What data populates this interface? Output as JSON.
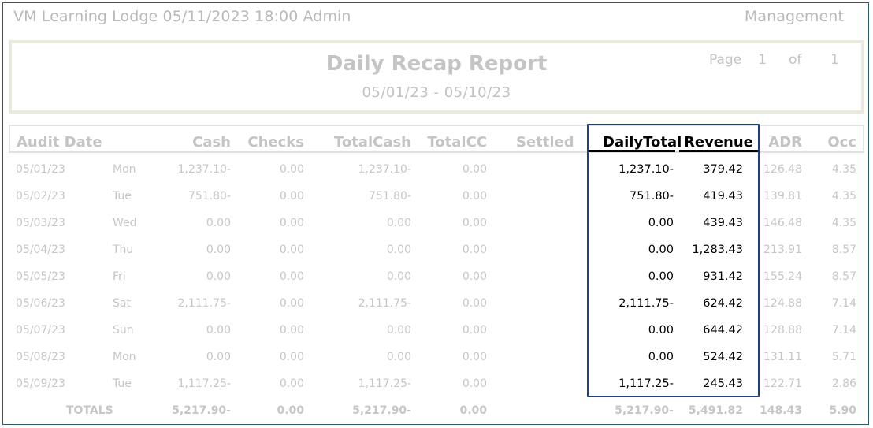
{
  "header": {
    "left_text": "VM Learning Lodge 05/11/2023 18:00  Admin",
    "right_text": "Management"
  },
  "report": {
    "title": "Daily Recap Report",
    "date_range": "05/01/23 - 05/10/23",
    "page_label": "Page",
    "page_number": "1",
    "of_label": "of",
    "page_count": "1"
  },
  "columns": {
    "audit_date": "Audit Date",
    "cash": "Cash",
    "checks": "Checks",
    "total_cash": "TotalCash",
    "total_cc": "TotalCC",
    "settled": "Settled",
    "daily_total": "DailyTotal",
    "revenue": "Revenue",
    "adr": "ADR",
    "occ": "Occ"
  },
  "rows": [
    {
      "date": "05/01/23",
      "day": "Mon",
      "cash": "1,237.10-",
      "checks": "0.00",
      "total_cash": "1,237.10-",
      "total_cc": "0.00",
      "daily_total": "1,237.10-",
      "revenue": "379.42",
      "adr": "126.48",
      "occ": "4.35"
    },
    {
      "date": "05/02/23",
      "day": "Tue",
      "cash": "751.80-",
      "checks": "0.00",
      "total_cash": "751.80-",
      "total_cc": "0.00",
      "daily_total": "751.80-",
      "revenue": "419.43",
      "adr": "139.81",
      "occ": "4.35"
    },
    {
      "date": "05/03/23",
      "day": "Wed",
      "cash": "0.00",
      "checks": "0.00",
      "total_cash": "0.00",
      "total_cc": "0.00",
      "daily_total": "0.00",
      "revenue": "439.43",
      "adr": "146.48",
      "occ": "4.35"
    },
    {
      "date": "05/04/23",
      "day": "Thu",
      "cash": "0.00",
      "checks": "0.00",
      "total_cash": "0.00",
      "total_cc": "0.00",
      "daily_total": "0.00",
      "revenue": "1,283.43",
      "adr": "213.91",
      "occ": "8.57"
    },
    {
      "date": "05/05/23",
      "day": "Fri",
      "cash": "0.00",
      "checks": "0.00",
      "total_cash": "0.00",
      "total_cc": "0.00",
      "daily_total": "0.00",
      "revenue": "931.42",
      "adr": "155.24",
      "occ": "8.57"
    },
    {
      "date": "05/06/23",
      "day": "Sat",
      "cash": "2,111.75-",
      "checks": "0.00",
      "total_cash": "2,111.75-",
      "total_cc": "0.00",
      "daily_total": "2,111.75-",
      "revenue": "624.42",
      "adr": "124.88",
      "occ": "7.14"
    },
    {
      "date": "05/07/23",
      "day": "Sun",
      "cash": "0.00",
      "checks": "0.00",
      "total_cash": "0.00",
      "total_cc": "0.00",
      "daily_total": "0.00",
      "revenue": "644.42",
      "adr": "128.88",
      "occ": "7.14"
    },
    {
      "date": "05/08/23",
      "day": "Mon",
      "cash": "0.00",
      "checks": "0.00",
      "total_cash": "0.00",
      "total_cc": "0.00",
      "daily_total": "0.00",
      "revenue": "524.42",
      "adr": "131.11",
      "occ": "5.71"
    },
    {
      "date": "05/09/23",
      "day": "Tue",
      "cash": "1,117.25-",
      "checks": "0.00",
      "total_cash": "1,117.25-",
      "total_cc": "0.00",
      "daily_total": "1,117.25-",
      "revenue": "245.43",
      "adr": "122.71",
      "occ": "2.86"
    }
  ],
  "totals": {
    "label": "TOTALS",
    "cash": "5,217.90-",
    "checks": "0.00",
    "total_cash": "5,217.90-",
    "total_cc": "0.00",
    "daily_total": "5,217.90-",
    "revenue": "5,491.82",
    "adr": "148.43",
    "occ": "5.90"
  },
  "colors": {
    "selection_border": "#1f3f7e",
    "frame_border": "#2c5c64",
    "faded_text": "#c6c6c6"
  }
}
